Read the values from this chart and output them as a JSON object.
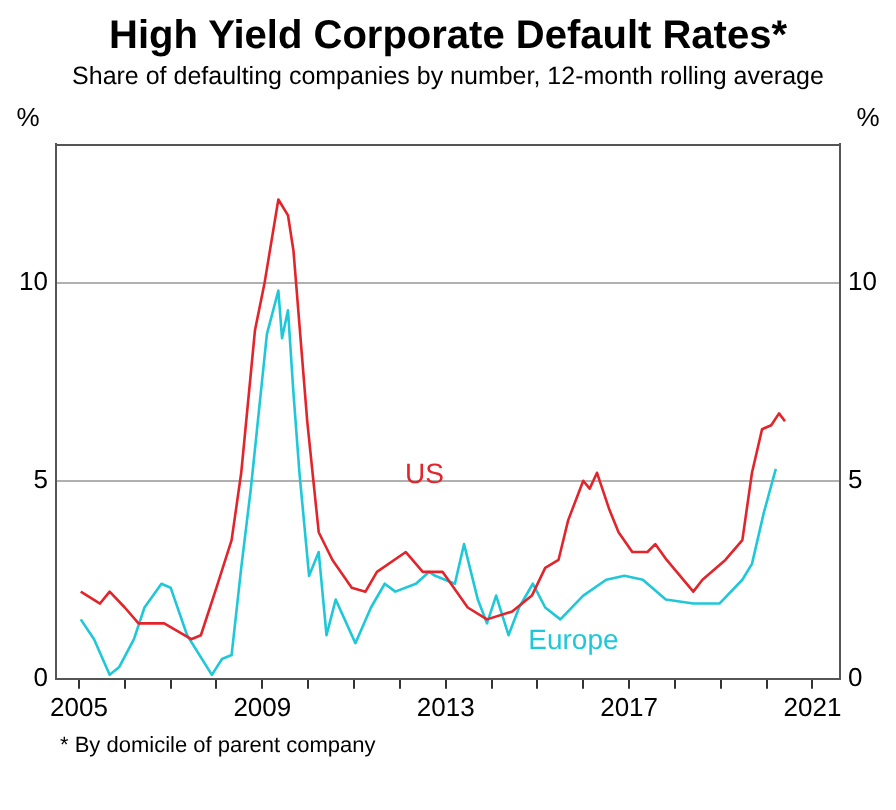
{
  "chart_data": {
    "type": "line",
    "title": "High Yield Corporate Default Rates*",
    "subtitle": "Share of defaulting companies by number, 12-month rolling average",
    "ylabel": "%",
    "y2label": "%",
    "annotations": [
      "*    By domicile of parent company"
    ],
    "xlim": [
      2004.5,
      2021.6
    ],
    "xticks": [
      2005,
      {
        "value": 2006,
        "label": null
      },
      {
        "value": 2007,
        "label": null
      },
      {
        "value": 2008,
        "label": null
      },
      2009,
      {
        "value": 2010,
        "label": null
      },
      {
        "value": 2011,
        "label": null
      },
      {
        "value": 2012,
        "label": null
      },
      2013,
      {
        "value": 2014,
        "label": null
      },
      {
        "value": 2015,
        "label": null
      },
      {
        "value": 2016,
        "label": null
      },
      2017,
      {
        "value": 2018,
        "label": null
      },
      {
        "value": 2019,
        "label": null
      },
      {
        "value": 2020,
        "label": null
      },
      2021
    ],
    "ylim": [
      0,
      13.5
    ],
    "yticks": [
      0,
      5,
      10
    ],
    "y2lim": [
      0,
      13.5
    ],
    "y2ticks": [
      0,
      5,
      10
    ],
    "grid": "y",
    "legend": false,
    "marker": "none",
    "line_style": "solid",
    "series": [
      {
        "name": "US",
        "color": "#e3242b",
        "x": [
          2005.04,
          2005.46,
          2005.67,
          2006.0,
          2006.3,
          2006.86,
          2007.45,
          2007.66,
          2008.0,
          2008.33,
          2008.54,
          2008.84,
          2009.05,
          2009.35,
          2009.56,
          2009.68,
          2009.98,
          2010.23,
          2010.53,
          2010.95,
          2011.25,
          2011.5,
          2012.13,
          2012.5,
          2012.93,
          2013.48,
          2013.9,
          2014.45,
          2014.88,
          2015.17,
          2015.46,
          2015.67,
          2016.0,
          2016.14,
          2016.3,
          2016.56,
          2016.77,
          2017.07,
          2017.4,
          2017.57,
          2017.82,
          2018.4,
          2018.6,
          2019.1,
          2019.47,
          2019.68,
          2019.9,
          2020.1,
          2020.27,
          2020.4
        ],
        "values": [
          2.2,
          1.9,
          2.2,
          1.8,
          1.4,
          1.4,
          1.0,
          1.1,
          2.3,
          3.5,
          5.2,
          8.8,
          10.0,
          12.1,
          11.7,
          10.8,
          6.5,
          3.7,
          3.0,
          2.3,
          2.2,
          2.7,
          3.2,
          2.7,
          2.7,
          1.8,
          1.5,
          1.7,
          2.1,
          2.8,
          3.0,
          4.0,
          5.0,
          4.8,
          5.2,
          4.3,
          3.7,
          3.2,
          3.2,
          3.4,
          3.0,
          2.2,
          2.5,
          3.0,
          3.5,
          5.2,
          6.3,
          6.4,
          6.7,
          6.5
        ]
      },
      {
        "name": "Europe",
        "color": "#1fc8d9",
        "x": [
          2005.04,
          2005.33,
          2005.67,
          2005.88,
          2006.2,
          2006.43,
          2006.8,
          2007.0,
          2007.36,
          2007.9,
          2008.12,
          2008.33,
          2008.54,
          2008.75,
          2009.1,
          2009.35,
          2009.43,
          2009.56,
          2009.68,
          2009.81,
          2010.02,
          2010.23,
          2010.4,
          2010.6,
          2011.03,
          2011.37,
          2011.67,
          2011.9,
          2012.35,
          2012.64,
          2012.77,
          2013.2,
          2013.4,
          2013.7,
          2013.9,
          2014.1,
          2014.37,
          2014.6,
          2014.9,
          2015.17,
          2015.5,
          2016.0,
          2016.5,
          2016.9,
          2017.3,
          2017.8,
          2018.4,
          2018.97,
          2019.47,
          2019.68,
          2019.94,
          2020.2
        ],
        "values": [
          1.5,
          1.0,
          0.1,
          0.3,
          1.0,
          1.8,
          2.4,
          2.3,
          1.1,
          0.1,
          0.5,
          0.6,
          2.8,
          4.8,
          8.7,
          9.8,
          8.6,
          9.3,
          7.2,
          5.2,
          2.6,
          3.2,
          1.1,
          2.0,
          0.9,
          1.8,
          2.4,
          2.2,
          2.4,
          2.7,
          2.6,
          2.4,
          3.4,
          2.0,
          1.4,
          2.1,
          1.1,
          1.8,
          2.4,
          1.8,
          1.5,
          2.1,
          2.5,
          2.6,
          2.5,
          2.0,
          1.9,
          1.9,
          2.5,
          2.9,
          4.2,
          5.3
        ]
      }
    ]
  }
}
